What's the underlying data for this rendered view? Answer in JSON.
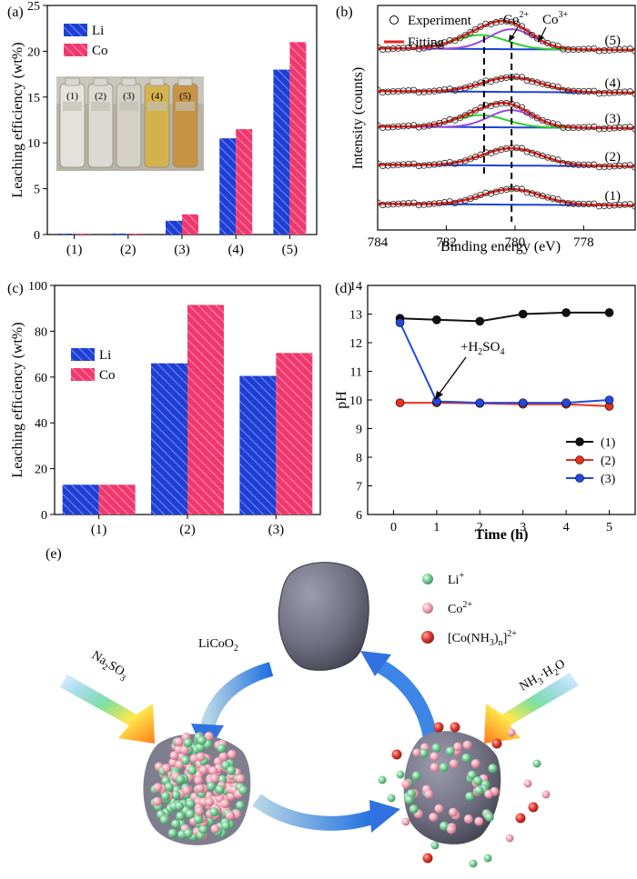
{
  "panel_labels": [
    "(a)",
    "(b)",
    "(c)",
    "(d)",
    "(e)"
  ],
  "colors": {
    "li": "#1e3fd6",
    "co": "#f0386e",
    "fit": "#e8241c",
    "green": "#2ed12e",
    "violet": "#9b4bd6",
    "baseline": "#1a45d8",
    "s1": "#111111",
    "s2": "#e8321e",
    "s3": "#2248e0"
  },
  "chart_data": [
    {
      "panel": "(a)",
      "type": "bar",
      "categories": [
        "(1)",
        "(2)",
        "(3)",
        "(4)",
        "(5)"
      ],
      "series": [
        {
          "name": "Li",
          "values": [
            0.1,
            0.1,
            1.5,
            10.5,
            18.0
          ]
        },
        {
          "name": "Co",
          "values": [
            0.1,
            0.1,
            2.2,
            11.5,
            21.0
          ]
        }
      ],
      "ylabel": "Leaching efficiency (wt%)",
      "ylim": [
        0,
        25
      ],
      "yticks": [
        0,
        5,
        10,
        15,
        20,
        25
      ],
      "legend": "top-left",
      "inset_photo_labels": [
        "(1)",
        "(2)",
        "(3)",
        "(4)",
        "(5)"
      ]
    },
    {
      "panel": "(b)",
      "type": "line",
      "xlabel": "Binding energy (eV)",
      "ylabel": "Intensity (counts)",
      "xlim": [
        784,
        776.5
      ],
      "xticks": [
        784,
        782,
        780,
        778
      ],
      "legend": [
        "Experiment",
        "Fitting"
      ],
      "peak_labels": [
        "Co2+",
        "Co3+"
      ],
      "peak_positions": [
        780.9,
        780.1
      ],
      "curve_labels": [
        "(5)",
        "(4)",
        "(3)",
        "(2)",
        "(1)"
      ],
      "has_co2_component": [
        true,
        false,
        true,
        false,
        false
      ]
    },
    {
      "panel": "(c)",
      "type": "bar",
      "categories": [
        "(1)",
        "(2)",
        "(3)"
      ],
      "series": [
        {
          "name": "Li",
          "values": [
            13,
            66,
            60.5
          ]
        },
        {
          "name": "Co",
          "values": [
            13,
            91.5,
            70.5
          ]
        }
      ],
      "ylabel": "Leaching efficiency (wt%)",
      "ylim": [
        0,
        100
      ],
      "yticks": [
        0,
        20,
        40,
        60,
        80,
        100
      ],
      "legend": "middle-left"
    },
    {
      "panel": "(d)",
      "type": "line",
      "xlabel": "Time (h)",
      "ylabel": "pH",
      "xlim": [
        -0.6,
        5.6
      ],
      "ylim": [
        6,
        14
      ],
      "xticks": [
        0,
        1,
        2,
        3,
        4,
        5
      ],
      "yticks": [
        6,
        7,
        8,
        9,
        10,
        11,
        12,
        13,
        14
      ],
      "annotation": "+H2SO4",
      "series": [
        {
          "name": "(1)",
          "x": [
            0.15,
            1,
            2,
            3,
            4,
            5
          ],
          "y": [
            12.85,
            12.8,
            12.75,
            13.0,
            13.05,
            13.05
          ]
        },
        {
          "name": "(2)",
          "x": [
            0.15,
            1,
            2,
            3,
            4,
            5
          ],
          "y": [
            9.9,
            9.9,
            9.88,
            9.85,
            9.85,
            9.78
          ]
        },
        {
          "name": "(3)",
          "x": [
            0.15,
            1,
            2,
            3,
            4,
            5
          ],
          "y": [
            12.7,
            9.95,
            9.9,
            9.9,
            9.9,
            10.0
          ]
        }
      ],
      "legend": "bottom-right"
    }
  ],
  "schematic": {
    "start_label": "LiCoO2",
    "left_reagent": "Na2SO3",
    "right_reagent": "NH3·H2O",
    "legend": [
      {
        "label": "Li+",
        "color": "#7ccf98"
      },
      {
        "label": "Co2+",
        "color": "#f2a8b8"
      },
      {
        "label": "[Co(NH3)n]2+",
        "color": "#e23b34"
      }
    ]
  }
}
